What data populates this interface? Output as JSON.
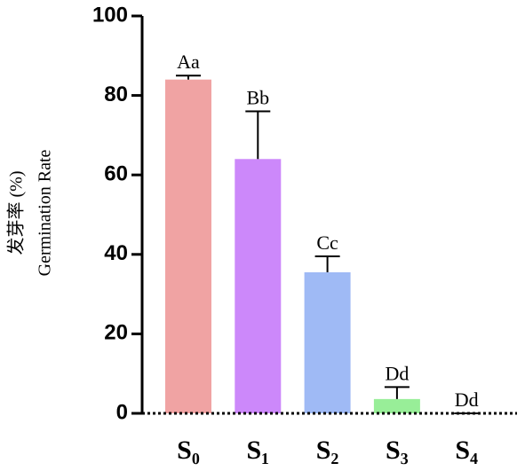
{
  "chart_data": {
    "type": "bar",
    "ylabel": [
      "发芽率 (%)",
      "Germination Rate"
    ],
    "categories": [
      "S₀",
      "S₁",
      "S₂",
      "S₃",
      "S₄"
    ],
    "values": [
      84,
      64,
      35.5,
      3.6,
      0
    ],
    "errors": [
      1,
      12,
      4,
      3,
      0
    ],
    "letters": [
      "Aa",
      "Bb",
      "Cc",
      "Dd",
      "Dd"
    ],
    "colors": [
      "#f0a3a3",
      "#cc88fa",
      "#9fbaf5",
      "#98ee98",
      "#ffffff"
    ],
    "ylim": [
      0,
      100
    ],
    "yticks": [
      0,
      20,
      40,
      60,
      80,
      100
    ]
  }
}
